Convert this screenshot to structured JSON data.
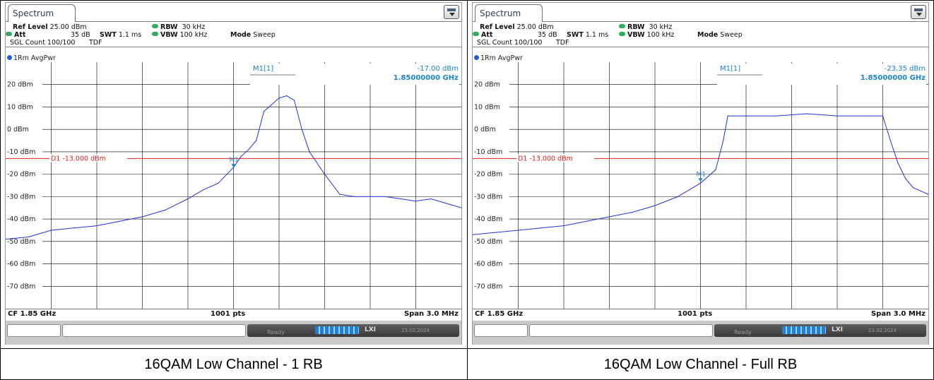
{
  "panels": [
    {
      "tab": "Spectrum",
      "ref_level_label": "Ref Level",
      "ref_level": "25.00 dBm",
      "att_label": "Att",
      "att": "35 dB",
      "swt_label": "SWT",
      "swt": "1.1 ms",
      "rbw_label": "RBW",
      "rbw": "30 kHz",
      "vbw_label": "VBW",
      "vbw": "100 kHz",
      "mode_label": "Mode",
      "mode": "Sweep",
      "sgl_count": "SGL Count 100/100",
      "tdf": "TDF",
      "trace": "1Rm AvgPwr",
      "marker_name": "M1[1]",
      "marker_level": "-17.00 dBm",
      "marker_freq": "1.85000000 GHz",
      "marker_tag": "M1",
      "display_line": "D1  -13.000 dBm",
      "cf": "CF 1.85 GHz",
      "pts": "1001 pts",
      "span": "Span 3.0 MHz",
      "status": "Ready",
      "lxi": "LXI",
      "date": "23.02.2024",
      "caption": "16QAM Low Channel - 1 RB"
    },
    {
      "tab": "Spectrum",
      "ref_level_label": "Ref Level",
      "ref_level": "25.00 dBm",
      "att_label": "Att",
      "att": "35 dB",
      "swt_label": "SWT",
      "swt": "1.1 ms",
      "rbw_label": "RBW",
      "rbw": "30 kHz",
      "vbw_label": "VBW",
      "vbw": "100 kHz",
      "mode_label": "Mode",
      "mode": "Sweep",
      "sgl_count": "SGL Count 100/100",
      "tdf": "TDF",
      "trace": "1Rm AvgPwr",
      "marker_name": "M1[1]",
      "marker_level": "-23.35 dBm",
      "marker_freq": "1.85000000 GHz",
      "marker_tag": "M1",
      "display_line": "D1  -13.000 dBm",
      "cf": "CF 1.85 GHz",
      "pts": "1001 pts",
      "span": "Span 3.0 MHz",
      "status": "Ready",
      "lxi": "LXI",
      "date": "23.02.2024",
      "caption": "16QAM Low Channel - Full RB"
    }
  ],
  "colors": {
    "trace": "#2233d6",
    "display_line": "#e02020",
    "marker": "#1b84c9",
    "grid": "#000000"
  },
  "chart_data": [
    {
      "type": "line",
      "title": "16QAM Low Channel - 1 RB",
      "x_unit": "MHz offset from CF 1.85 GHz",
      "xlim": [
        -1.5,
        1.5
      ],
      "ylim": [
        -80,
        30
      ],
      "y_ticks": [
        "20 dBm",
        "10 dBm",
        "0 dBm",
        "-10 dBm",
        "-20 dBm",
        "-30 dBm",
        "-40 dBm",
        "-50 dBm",
        "-60 dBm",
        "-70 dBm"
      ],
      "display_line_dbm": -13,
      "marker": {
        "x": 0.0,
        "y": -17.0
      },
      "series": [
        {
          "x": [
            -1.5,
            -1.35,
            -1.2,
            -1.05,
            -0.9,
            -0.75,
            -0.6,
            -0.45,
            -0.3,
            -0.2,
            -0.1,
            0.0,
            0.05,
            0.1,
            0.15,
            0.2,
            0.3,
            0.35,
            0.4,
            0.45,
            0.5,
            0.6,
            0.7,
            0.8,
            0.9,
            1.0,
            1.1,
            1.2,
            1.3,
            1.4,
            1.5
          ],
          "y": [
            -49,
            -48,
            -45,
            -44,
            -43,
            -41,
            -39,
            -36,
            -31,
            -27,
            -24,
            -17,
            -12,
            -9,
            -5,
            8,
            14,
            15,
            13,
            0,
            -10,
            -20,
            -29,
            -30,
            -30,
            -30,
            -31,
            -32,
            -31,
            -33,
            -35
          ]
        }
      ]
    },
    {
      "type": "line",
      "title": "16QAM Low Channel - Full RB",
      "x_unit": "MHz offset from CF 1.85 GHz",
      "xlim": [
        -1.5,
        1.5
      ],
      "ylim": [
        -80,
        30
      ],
      "y_ticks": [
        "20 dBm",
        "10 dBm",
        "0 dBm",
        "-10 dBm",
        "-20 dBm",
        "-30 dBm",
        "-40 dBm",
        "-50 dBm",
        "-60 dBm",
        "-70 dBm"
      ],
      "display_line_dbm": -13,
      "marker": {
        "x": 0.0,
        "y": -23.35
      },
      "series": [
        {
          "x": [
            -1.5,
            -1.35,
            -1.2,
            -1.05,
            -0.9,
            -0.75,
            -0.6,
            -0.45,
            -0.3,
            -0.15,
            0.0,
            0.1,
            0.15,
            0.18,
            0.3,
            0.5,
            0.7,
            0.9,
            1.1,
            1.2,
            1.25,
            1.3,
            1.35,
            1.4,
            1.5
          ],
          "y": [
            -47,
            -46,
            -45,
            -44,
            -43,
            -41,
            -39,
            -37,
            -34,
            -30,
            -24,
            -18,
            -5,
            6,
            6,
            6,
            7,
            6,
            6,
            6,
            -5,
            -15,
            -22,
            -26,
            -29
          ]
        }
      ]
    }
  ]
}
